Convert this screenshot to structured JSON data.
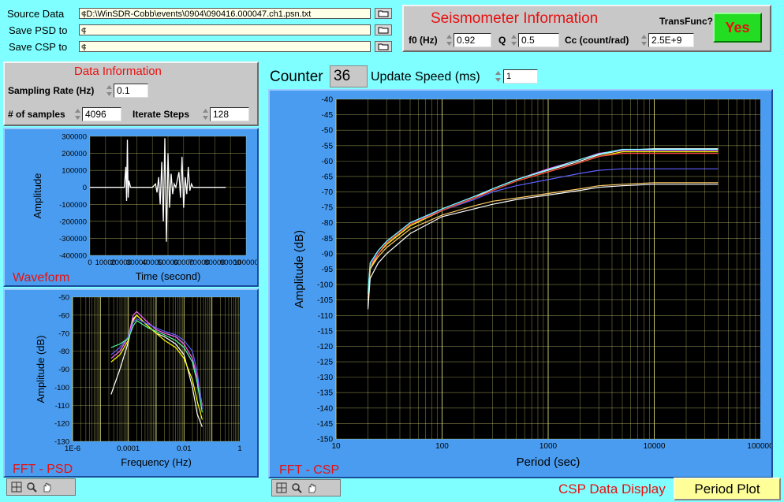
{
  "files": {
    "source_label": "Source Data",
    "source_value": "D:\\WinSDR-Cobb\\events\\0904\\090416.000047.ch1.psn.txt",
    "psd_label": "Save PSD to",
    "psd_value": "",
    "csp_label": "Save CSP to",
    "csp_value": ""
  },
  "seismo": {
    "title": "Seismometer Information",
    "transfunc_label": "TransFunc?",
    "transfunc_value": "Yes",
    "f0_label": "f0 (Hz)",
    "f0_value": "0.92",
    "q_label": "Q",
    "q_value": "0.5",
    "cc_label": "Cc (count/rad)",
    "cc_value": "2.5E+9"
  },
  "datainfo": {
    "title": "Data Information",
    "rate_label": "Sampling Rate (Hz)",
    "rate_value": "0.1",
    "samples_label": "# of samples",
    "samples_value": "4096",
    "iterate_label": "Iterate Steps",
    "iterate_value": "128"
  },
  "counter": {
    "label": "Counter",
    "value": "36",
    "speed_label": "Update Speed (ms)",
    "speed_value": "1"
  },
  "footer": {
    "csp_display_label": "CSP Data Display",
    "period_plot_label": "Period Plot"
  },
  "colors": {
    "background": "#7fffff",
    "panel": "#4a9cf0",
    "plot_bg": "#000000",
    "grid": "#d8d87a",
    "title_red": "#e81010",
    "yes_green": "#22dd22",
    "period_button": "#ffff99"
  },
  "icons": [
    "folder-icon",
    "crosshair-icon",
    "zoom-icon",
    "hand-icon",
    "spinner-icon"
  ],
  "chart_data": [
    {
      "type": "line",
      "panel_label": "Waveform",
      "xlabel": "Time (second)",
      "ylabel": "Amplitude",
      "xlim": [
        0,
        100000
      ],
      "ylim": [
        -400000,
        300000
      ],
      "x_ticks": [
        "0",
        "10000",
        "20000",
        "30000",
        "40000",
        "50000",
        "60000",
        "70000",
        "80000",
        "90000",
        "100000"
      ],
      "y_ticks": [
        "300000",
        "200000",
        "100000",
        "0",
        "-100000",
        "-200000",
        "-300000",
        "-400000"
      ],
      "series": [
        {
          "color": "#ffffff",
          "x": [
            0,
            22000,
            23000,
            23500,
            24000,
            24500,
            25000,
            26000,
            40000,
            42000,
            43000,
            44000,
            45000,
            46000,
            47000,
            48000,
            49000,
            50000,
            51000,
            52000,
            53000,
            54000,
            55000,
            57000,
            58000,
            59000,
            60000,
            61000,
            62000,
            63000,
            64000,
            65000,
            66000,
            70000,
            80000,
            87000
          ],
          "y": [
            0,
            0,
            120000,
            -80000,
            280000,
            -60000,
            40000,
            0,
            0,
            20000,
            -30000,
            60000,
            -100000,
            150000,
            -200000,
            290000,
            -320000,
            200000,
            -120000,
            80000,
            -40000,
            20000,
            0,
            90000,
            -60000,
            180000,
            -120000,
            60000,
            -40000,
            120000,
            -20000,
            20000,
            0,
            0,
            0,
            0
          ]
        }
      ]
    },
    {
      "type": "line",
      "panel_label": "FFT - PSD",
      "xlabel": "Frequency (Hz)",
      "ylabel": "Amplitude (dB)",
      "xscale": "log",
      "xlim": [
        1e-06,
        1
      ],
      "ylim": [
        -130,
        -50
      ],
      "x_ticks": [
        "1E-6",
        "0.0001",
        "0.01",
        "1"
      ],
      "y_ticks": [
        "-50",
        "-60",
        "-70",
        "-80",
        "-90",
        "-100",
        "-110",
        "-120",
        "-130"
      ],
      "series": [
        {
          "color": "#ffffff",
          "x": [
            2.4e-05,
            5e-05,
            0.0001,
            0.00015,
            0.0002,
            0.0005,
            0.001,
            0.002,
            0.005,
            0.01,
            0.02,
            0.03,
            0.045
          ],
          "y": [
            -104,
            -90,
            -75,
            -62,
            -60,
            -66,
            -70,
            -72,
            -76,
            -82,
            -100,
            -115,
            -122
          ]
        },
        {
          "color": "#ff66ff",
          "x": [
            2.4e-05,
            5e-05,
            0.0001,
            0.00015,
            0.0002,
            0.0005,
            0.001,
            0.002,
            0.005,
            0.01,
            0.02,
            0.03,
            0.045
          ],
          "y": [
            -84,
            -80,
            -72,
            -60,
            -58,
            -64,
            -68,
            -70,
            -72,
            -76,
            -84,
            -95,
            -110
          ]
        },
        {
          "color": "#ffff00",
          "x": [
            2.4e-05,
            5e-05,
            0.0001,
            0.00015,
            0.0002,
            0.0005,
            0.001,
            0.002,
            0.005,
            0.01,
            0.02,
            0.03,
            0.045
          ],
          "y": [
            -86,
            -82,
            -74,
            -63,
            -60,
            -66,
            -70,
            -74,
            -78,
            -84,
            -96,
            -108,
            -118
          ]
        },
        {
          "color": "#5f5fff",
          "x": [
            2.4e-05,
            5e-05,
            0.0001,
            0.00015,
            0.0002,
            0.0005,
            0.001,
            0.002,
            0.005,
            0.01,
            0.02,
            0.03,
            0.045
          ],
          "y": [
            -82,
            -78,
            -72,
            -64,
            -62,
            -65,
            -67,
            -69,
            -71,
            -74,
            -80,
            -92,
            -112
          ]
        },
        {
          "color": "#55ff99",
          "x": [
            2.4e-05,
            5e-05,
            0.0001,
            0.00015,
            0.0002,
            0.0005,
            0.001,
            0.002,
            0.005,
            0.01,
            0.02,
            0.03,
            0.045
          ],
          "y": [
            -78,
            -76,
            -73,
            -66,
            -63,
            -67,
            -69,
            -71,
            -74,
            -78,
            -86,
            -98,
            -114
          ]
        }
      ]
    },
    {
      "type": "line",
      "panel_label": "FFT - CSP",
      "xlabel": "Period (sec)",
      "ylabel": "Amplitude (dB)",
      "xscale": "log",
      "xlim": [
        10,
        100000
      ],
      "ylim": [
        -150,
        -40
      ],
      "x_ticks": [
        "10",
        "100",
        "1000",
        "10000",
        "100000"
      ],
      "y_ticks": [
        "-40",
        "-45",
        "-50",
        "-55",
        "-60",
        "-65",
        "-70",
        "-75",
        "-80",
        "-85",
        "-90",
        "-95",
        "-100",
        "-105",
        "-110",
        "-115",
        "-120",
        "-125",
        "-130",
        "-135",
        "-140",
        "-145",
        "-150"
      ],
      "series": [
        {
          "color": "#ffffff",
          "x": [
            20,
            21,
            25,
            30,
            50,
            100,
            200,
            300,
            500,
            1000,
            2000,
            3000,
            5000,
            10000,
            20000,
            40000
          ],
          "y": [
            -107,
            -95,
            -90,
            -87,
            -81,
            -76,
            -72,
            -69,
            -66,
            -63,
            -60,
            -58,
            -56.5,
            -56,
            -56,
            -56
          ]
        },
        {
          "color": "#ff66ff",
          "x": [
            20,
            21,
            25,
            30,
            50,
            100,
            200,
            300,
            500,
            1000,
            2000,
            3000,
            5000,
            10000,
            20000,
            40000
          ],
          "y": [
            -104,
            -93,
            -89,
            -86,
            -80,
            -75.5,
            -71.5,
            -69,
            -66,
            -62.5,
            -59.5,
            -57.5,
            -56.5,
            -56.5,
            -56.5,
            -56.5
          ]
        },
        {
          "color": "#ffff00",
          "x": [
            20,
            21,
            25,
            30,
            50,
            100,
            200,
            300,
            500,
            1000,
            2000,
            3000,
            5000,
            10000,
            20000,
            40000
          ],
          "y": [
            -105,
            -95,
            -90,
            -87,
            -81,
            -76,
            -72,
            -69.5,
            -66.5,
            -63.5,
            -60.5,
            -58.5,
            -57,
            -57,
            -57,
            -57
          ]
        },
        {
          "color": "#5f5fff",
          "x": [
            20,
            21,
            25,
            30,
            50,
            100,
            200,
            300,
            500,
            1000,
            2000,
            3000,
            5000,
            10000,
            20000,
            40000
          ],
          "y": [
            -103,
            -94,
            -89,
            -86,
            -80,
            -76,
            -72.5,
            -70,
            -68,
            -66,
            -64,
            -63,
            -62.5,
            -62.5,
            -62.5,
            -62.5
          ]
        },
        {
          "color": "#ff4444",
          "x": [
            20,
            21,
            25,
            30,
            50,
            100,
            200,
            300,
            500,
            1000,
            2000,
            3000,
            5000,
            10000,
            20000,
            40000
          ],
          "y": [
            -104,
            -94,
            -90,
            -86.5,
            -80.5,
            -76,
            -72,
            -69.5,
            -66.5,
            -63.5,
            -60.5,
            -58.5,
            -57.5,
            -57.5,
            -57.5,
            -57.5
          ]
        },
        {
          "color": "#ffcc66",
          "x": [
            20,
            21,
            25,
            30,
            50,
            100,
            200,
            300,
            500,
            1000,
            2000,
            3000,
            5000,
            10000,
            20000,
            40000
          ],
          "y": [
            -105,
            -95,
            -91,
            -88,
            -82,
            -77.5,
            -74.5,
            -73,
            -72,
            -70.5,
            -69,
            -68,
            -67.5,
            -67,
            -67,
            -67
          ]
        },
        {
          "color": "#ffffff",
          "x": [
            20,
            21,
            25,
            30,
            50,
            100,
            200,
            300,
            500,
            1000,
            2000,
            3000,
            5000,
            10000,
            20000,
            40000
          ],
          "y": [
            -108,
            -98,
            -93,
            -90,
            -83.5,
            -78,
            -75.5,
            -74,
            -72.5,
            -71,
            -69.5,
            -68.5,
            -68,
            -67.5,
            -67.5,
            -67.5
          ]
        },
        {
          "color": "#66ffff",
          "x": [
            20,
            21,
            25,
            30,
            50,
            100,
            200,
            300,
            500,
            1000,
            2000,
            3000,
            5000,
            10000,
            20000,
            40000
          ],
          "y": [
            -103,
            -93,
            -89,
            -86,
            -80,
            -75.5,
            -71.5,
            -69,
            -66,
            -62.8,
            -59.5,
            -57.7,
            -56.2,
            -56.2,
            -56.2,
            -56.2
          ]
        }
      ]
    }
  ]
}
